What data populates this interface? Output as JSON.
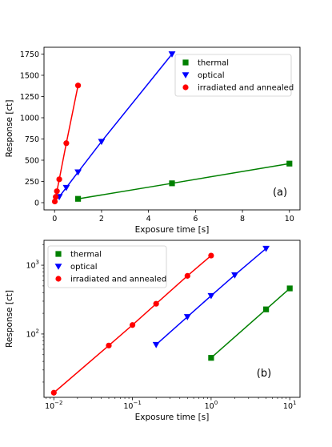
{
  "chart_data": [
    {
      "type": "line",
      "panel_label": "(a)",
      "xlabel": "Exposure time [s]",
      "ylabel": "Response [ct]",
      "xscale": "linear",
      "yscale": "linear",
      "xlim": [
        -0.45,
        10.45
      ],
      "ylim": [
        -85,
        1830
      ],
      "xticks": [
        0,
        2,
        4,
        6,
        8,
        10
      ],
      "xtick_labels": [
        "0",
        "2",
        "4",
        "6",
        "8",
        "10"
      ],
      "yticks": [
        0,
        250,
        500,
        750,
        1000,
        1250,
        1500,
        1750
      ],
      "ytick_labels": [
        "0",
        "250",
        "500",
        "750",
        "1000",
        "1250",
        "1500",
        "1750"
      ],
      "grid": false,
      "legend_position": "top-right",
      "series": [
        {
          "name": "thermal",
          "marker": "square",
          "color": "#008000",
          "x": [
            1,
            5,
            10
          ],
          "y": [
            45,
            228,
            460
          ]
        },
        {
          "name": "optical",
          "marker": "triangle-down",
          "color": "#0000ff",
          "x": [
            0.2,
            0.5,
            1,
            2,
            5
          ],
          "y": [
            70,
            178,
            360,
            720,
            1750
          ]
        },
        {
          "name": "irradiated and annealed",
          "marker": "circle",
          "color": "#ff0000",
          "x": [
            0.01,
            0.05,
            0.1,
            0.2,
            0.5,
            1
          ],
          "y": [
            14,
            68,
            135,
            275,
            700,
            1380
          ]
        }
      ]
    },
    {
      "type": "line",
      "panel_label": "(b)",
      "xlabel": "Exposure time [s]",
      "ylabel": "Response [ct]",
      "xscale": "log",
      "yscale": "log",
      "xlim": [
        0.0075,
        13.5
      ],
      "ylim": [
        12,
        2300
      ],
      "xticks": [
        0.01,
        0.1,
        1,
        10
      ],
      "xtick_labels": [
        [
          "10",
          "−2"
        ],
        [
          "10",
          "−1"
        ],
        [
          "10",
          "0"
        ],
        [
          "10",
          "1"
        ]
      ],
      "yticks": [
        100,
        1000
      ],
      "ytick_labels": [
        [
          "10",
          "2"
        ],
        [
          "10",
          "3"
        ]
      ],
      "grid": false,
      "legend_position": "top-left",
      "series": [
        {
          "name": "thermal",
          "marker": "square",
          "color": "#008000",
          "x": [
            1,
            5,
            10
          ],
          "y": [
            45,
            228,
            460
          ]
        },
        {
          "name": "optical",
          "marker": "triangle-down",
          "color": "#0000ff",
          "x": [
            0.2,
            0.5,
            1,
            2,
            5
          ],
          "y": [
            70,
            178,
            360,
            720,
            1750
          ]
        },
        {
          "name": "irradiated and annealed",
          "marker": "circle",
          "color": "#ff0000",
          "x": [
            0.01,
            0.05,
            0.1,
            0.2,
            0.5,
            1
          ],
          "y": [
            14,
            68,
            135,
            275,
            700,
            1380
          ]
        }
      ]
    }
  ]
}
